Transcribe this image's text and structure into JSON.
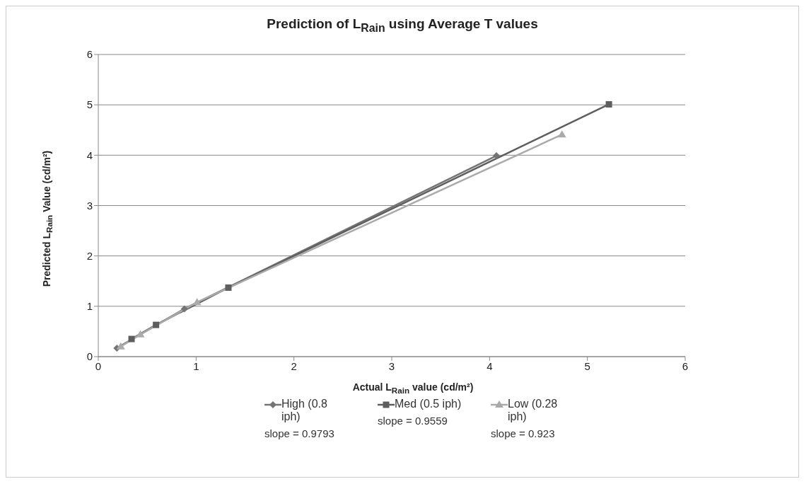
{
  "chart_data": {
    "type": "line",
    "title": "Prediction of L$_{Rain}$ using Average T values",
    "xlabel": "Actual L$_{Rain}$ value (cd/m²)",
    "ylabel": "Predicted L$_{Rain}$ Value (cd/m²)",
    "series": [
      {
        "name": "High (0.8 iph)",
        "color": "#747474",
        "marker": "diamond",
        "x": [
          0.19,
          0.88,
          4.07
        ],
        "values": [
          0.17,
          0.95,
          3.99
        ]
      },
      {
        "name": "Med (0.5 iph)",
        "color": "#5e5e5e",
        "marker": "square",
        "x": [
          0.34,
          0.59,
          1.33,
          5.22
        ],
        "values": [
          0.35,
          0.63,
          1.37,
          5.01
        ]
      },
      {
        "name": "Low (0.28 iph)",
        "color": "#aaaaaa",
        "marker": "triangle",
        "x": [
          0.23,
          0.43,
          1.01,
          4.74
        ],
        "values": [
          0.2,
          0.44,
          1.08,
          4.41
        ]
      }
    ],
    "annotations": [
      "slope = 0.9793",
      "slope = 0.9559",
      "slope = 0.923"
    ],
    "xlim": [
      0,
      6
    ],
    "xticks": [
      0,
      1,
      2,
      3,
      4,
      5,
      6
    ],
    "ylim": [
      0,
      6
    ],
    "yticks": [
      0,
      1,
      2,
      3,
      4,
      5,
      6
    ],
    "grid": "y",
    "legend": "bottom",
    "line_style": "solid"
  }
}
